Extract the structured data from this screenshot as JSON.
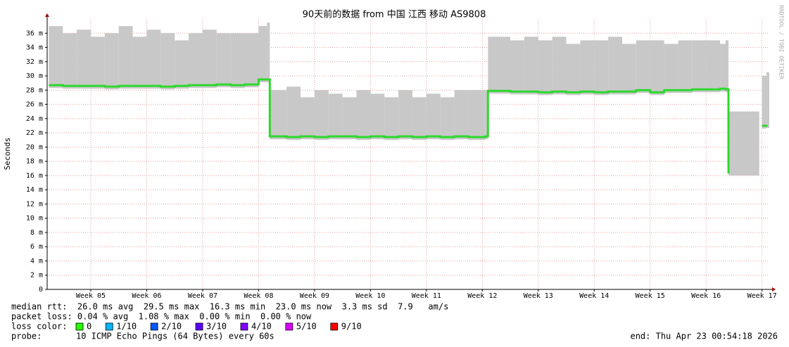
{
  "chart_data": {
    "type": "smokeping",
    "title": "90天前的数据 from 中国 江西 移动 AS9808",
    "y_label": "Seconds",
    "side_note": "RRDTOOL / TOBI OETIKER",
    "xlim": [
      4.22,
      17.13
    ],
    "xticks": [
      {
        "value": 5,
        "label": "Week 05"
      },
      {
        "value": 6,
        "label": "Week 06"
      },
      {
        "value": 7,
        "label": "Week 07"
      },
      {
        "value": 8,
        "label": "Week 08"
      },
      {
        "value": 9,
        "label": "Week 09"
      },
      {
        "value": 10,
        "label": "Week 10"
      },
      {
        "value": 11,
        "label": "Week 11"
      },
      {
        "value": 12,
        "label": "Week 12"
      },
      {
        "value": 13,
        "label": "Week 13"
      },
      {
        "value": 14,
        "label": "Week 14"
      },
      {
        "value": 15,
        "label": "Week 15"
      },
      {
        "value": 16,
        "label": "Week 16"
      },
      {
        "value": 17,
        "label": "Week 17"
      }
    ],
    "ylim": [
      0,
      0.038
    ],
    "yticks": [
      0,
      {
        "value": 0.002,
        "label": "2 m"
      },
      {
        "value": 0.004,
        "label": "4 m"
      },
      {
        "value": 0.006,
        "label": "6 m"
      },
      {
        "value": 0.008,
        "label": "8 m"
      },
      {
        "value": 0.01,
        "label": "10 m"
      },
      {
        "value": 0.012,
        "label": "12 m"
      },
      {
        "value": 0.014,
        "label": "14 m"
      },
      {
        "value": 0.016,
        "label": "16 m"
      },
      {
        "value": 0.018,
        "label": "18 m"
      },
      {
        "value": 0.02,
        "label": "20 m"
      },
      {
        "value": 0.022,
        "label": "22 m"
      },
      {
        "value": 0.024,
        "label": "24 m"
      },
      {
        "value": 0.026,
        "label": "26 m"
      },
      {
        "value": 0.028,
        "label": "28 m"
      },
      {
        "value": 0.03,
        "label": "30 m"
      },
      {
        "value": 0.032,
        "label": "32 m"
      },
      {
        "value": 0.034,
        "label": "34 m"
      },
      {
        "value": 0.036,
        "label": "36 m"
      }
    ],
    "grid": true,
    "x": [
      4.25,
      4.5,
      4.75,
      5.0,
      5.25,
      5.5,
      5.75,
      6.0,
      6.25,
      6.5,
      6.75,
      7.0,
      7.25,
      7.5,
      7.75,
      8.0,
      8.15,
      8.2,
      8.5,
      8.75,
      9.0,
      9.25,
      9.5,
      9.75,
      10.0,
      10.25,
      10.5,
      10.75,
      11.0,
      11.25,
      11.5,
      11.75,
      12.05,
      12.1,
      12.5,
      12.75,
      13.0,
      13.25,
      13.5,
      13.75,
      14.0,
      14.25,
      14.5,
      14.75,
      15.0,
      15.25,
      15.5,
      15.75,
      16.0,
      16.25,
      16.35,
      16.4,
      16.95,
      17.0,
      17.08
    ],
    "median": {
      "color": "#2ed82e",
      "values": [
        0.0287,
        0.0286,
        0.0286,
        0.0286,
        0.0285,
        0.0286,
        0.0286,
        0.0286,
        0.0285,
        0.0286,
        0.0287,
        0.0287,
        0.0288,
        0.0287,
        0.0288,
        0.0295,
        0.0295,
        0.0215,
        0.0214,
        0.0215,
        0.0214,
        0.0215,
        0.0215,
        0.0214,
        0.0215,
        0.0214,
        0.0215,
        0.0214,
        0.0215,
        0.0214,
        0.0215,
        0.0214,
        0.0215,
        0.0279,
        0.0278,
        0.0278,
        0.0277,
        0.0278,
        0.0277,
        0.0278,
        0.0277,
        0.0278,
        0.0278,
        0.028,
        0.0277,
        0.028,
        0.028,
        0.0281,
        0.0281,
        0.0282,
        0.0281,
        0.0163,
        null,
        0.023,
        0.0231
      ]
    },
    "smoke_top": {
      "color": "#c8c8c8",
      "values": [
        0.037,
        0.036,
        0.0365,
        0.0355,
        0.036,
        0.037,
        0.0355,
        0.0365,
        0.036,
        0.035,
        0.036,
        0.0365,
        0.036,
        0.036,
        0.036,
        0.037,
        0.0375,
        0.028,
        0.0285,
        0.027,
        0.028,
        0.0275,
        0.027,
        0.028,
        0.0275,
        0.027,
        0.028,
        0.027,
        0.0275,
        0.027,
        0.028,
        0.028,
        0.028,
        0.0355,
        0.035,
        0.0355,
        0.035,
        0.0355,
        0.0345,
        0.035,
        0.035,
        0.0355,
        0.0345,
        0.035,
        0.035,
        0.0345,
        0.035,
        0.035,
        0.035,
        0.0345,
        0.035,
        0.025,
        null,
        0.03,
        0.0305
      ]
    },
    "smoke_bottom": {
      "color": "#c8c8c8",
      "values": [
        0.0283,
        0.0282,
        0.0282,
        0.0282,
        0.0281,
        0.0282,
        0.0282,
        0.0282,
        0.0281,
        0.0282,
        0.0283,
        0.0283,
        0.0284,
        0.0283,
        0.0284,
        0.0291,
        0.0291,
        0.0211,
        0.021,
        0.0211,
        0.021,
        0.0211,
        0.0211,
        0.021,
        0.0211,
        0.021,
        0.0211,
        0.021,
        0.0211,
        0.021,
        0.0211,
        0.021,
        0.0211,
        0.0275,
        0.0274,
        0.0274,
        0.0273,
        0.0274,
        0.0273,
        0.0274,
        0.0273,
        0.0274,
        0.0274,
        0.0276,
        0.0273,
        0.0276,
        0.0276,
        0.0277,
        0.0277,
        0.0278,
        0.0277,
        0.016,
        null,
        0.0226,
        0.0227
      ]
    },
    "stats": [
      "median rtt:  26.0 ms avg  29.5 ms max  16.3 ms min  23.0 ms now  3.3 ms sd  7.9   am/s",
      "packet loss: 0.04 % avg  1.08 % max  0.00 % min  0.00 % now"
    ],
    "loss_label": "loss color:",
    "loss_colors": [
      {
        "name": "0",
        "color": "#26ff00"
      },
      {
        "name": "1/10",
        "color": "#00b8ff"
      },
      {
        "name": "2/10",
        "color": "#0059ff"
      },
      {
        "name": "3/10",
        "color": "#5e00ff"
      },
      {
        "name": "4/10",
        "color": "#7e00ff"
      },
      {
        "name": "5/10",
        "color": "#dd00ff"
      },
      {
        "name": "9/10",
        "color": "#ff0000"
      }
    ],
    "probe_label": "probe:",
    "probe": "10 ICMP Echo Pings (64 Bytes) every 60s",
    "end": "end: Thu Apr 23 00:54:18 2026"
  }
}
